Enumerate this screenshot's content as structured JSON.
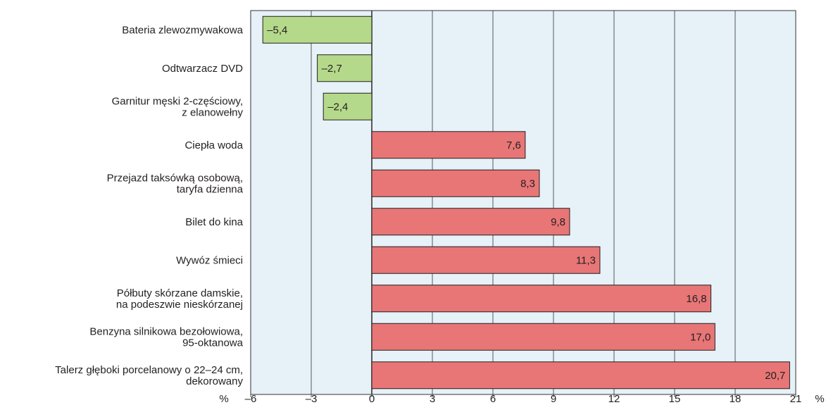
{
  "chart_data": {
    "type": "bar",
    "orientation": "horizontal",
    "title": "",
    "xlabel": "%",
    "ylabel": "",
    "unit_left": "%",
    "unit_right": "%",
    "xlim": [
      -6,
      21
    ],
    "xticks": [
      -6,
      -3,
      0,
      3,
      6,
      9,
      12,
      15,
      18,
      21
    ],
    "xtick_labels": [
      "–6",
      "–3",
      "0",
      "3",
      "6",
      "9",
      "12",
      "15",
      "18",
      "21"
    ],
    "grid": true,
    "legend": "none",
    "categories": [
      [
        "Bateria zlewozmywakowa"
      ],
      [
        "Odtwarzacz DVD"
      ],
      [
        "Garnitur męski 2-częściowy,",
        "z elanowełny"
      ],
      [
        "Ciepła woda"
      ],
      [
        "Przejazd taksówką osobową,",
        "taryfa dzienna"
      ],
      [
        "Bilet do kina"
      ],
      [
        "Wywóz śmieci"
      ],
      [
        "Półbuty skórzane damskie,",
        "na podeszwie nieskórzanej"
      ],
      [
        "Benzyna silnikowa bezołowiowa,",
        "95-oktanowa"
      ],
      [
        "Talerz głęboki porcelanowy o 22–24 cm,",
        "dekorowany"
      ]
    ],
    "values": [
      -5.4,
      -2.7,
      -2.4,
      7.6,
      8.3,
      9.8,
      11.3,
      16.8,
      17.0,
      20.7
    ],
    "value_labels": [
      "–5,4",
      "–2,7",
      "–2,4",
      "7,6",
      "8,3",
      "9,8",
      "11,3",
      "16,8",
      "17,0",
      "20,7"
    ],
    "colors": {
      "negative": "#b5d98a",
      "positive": "#e87676",
      "plot_background": "#e6f1f8",
      "grid": "#333333",
      "bar_stroke": "#231f20"
    }
  }
}
